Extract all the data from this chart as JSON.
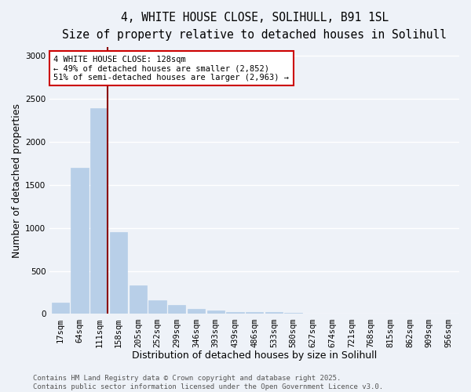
{
  "title_line1": "4, WHITE HOUSE CLOSE, SOLIHULL, B91 1SL",
  "title_line2": "Size of property relative to detached houses in Solihull",
  "xlabel": "Distribution of detached houses by size in Solihull",
  "ylabel": "Number of detached properties",
  "categories": [
    "17sqm",
    "64sqm",
    "111sqm",
    "158sqm",
    "205sqm",
    "252sqm",
    "299sqm",
    "346sqm",
    "393sqm",
    "439sqm",
    "486sqm",
    "533sqm",
    "580sqm",
    "627sqm",
    "674sqm",
    "721sqm",
    "768sqm",
    "815sqm",
    "862sqm",
    "909sqm",
    "956sqm"
  ],
  "values": [
    130,
    1700,
    2390,
    950,
    330,
    155,
    100,
    60,
    40,
    25,
    20,
    18,
    15,
    0,
    0,
    0,
    0,
    0,
    0,
    0,
    0
  ],
  "bar_color": "#b8cfe8",
  "bar_edge_color": "#b8cfe8",
  "vline_x_index": 2,
  "vline_color": "#8b0000",
  "annotation_line1": "4 WHITE HOUSE CLOSE: 128sqm",
  "annotation_line2": "← 49% of detached houses are smaller (2,852)",
  "annotation_line3": "51% of semi-detached houses are larger (2,963) →",
  "annotation_box_color": "#ffffff",
  "annotation_box_edge_color": "#cc0000",
  "ylim": [
    0,
    3100
  ],
  "yticks": [
    0,
    500,
    1000,
    1500,
    2000,
    2500,
    3000
  ],
  "bg_color": "#eef2f8",
  "grid_color": "#ffffff",
  "footer_text": "Contains HM Land Registry data © Crown copyright and database right 2025.\nContains public sector information licensed under the Open Government Licence v3.0.",
  "title_fontsize": 10.5,
  "subtitle_fontsize": 9.5,
  "axis_label_fontsize": 9,
  "tick_fontsize": 7.5,
  "annotation_fontsize": 7.5,
  "footer_fontsize": 6.5
}
